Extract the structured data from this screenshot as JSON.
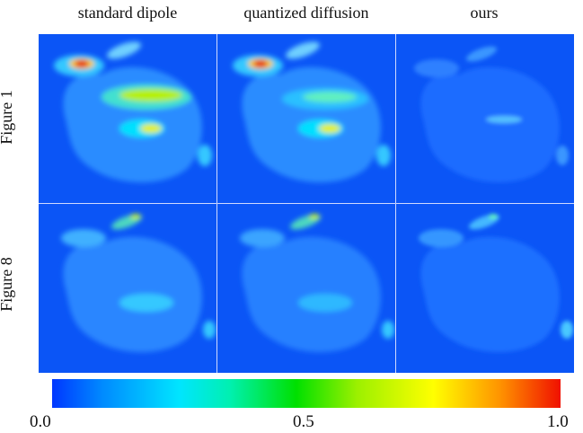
{
  "columns": [
    "standard dipole",
    "quantized diffusion",
    "ours"
  ],
  "rows": [
    "Figure 1",
    "Figure 8"
  ],
  "colorbar": {
    "min_label": "0.0",
    "mid_label": "0.5",
    "max_label": "1.0",
    "colors": [
      "#0037ff",
      "#00e5ff",
      "#00e000",
      "#ffff00",
      "#f01000"
    ]
  },
  "background_color": "#0b55f6"
}
